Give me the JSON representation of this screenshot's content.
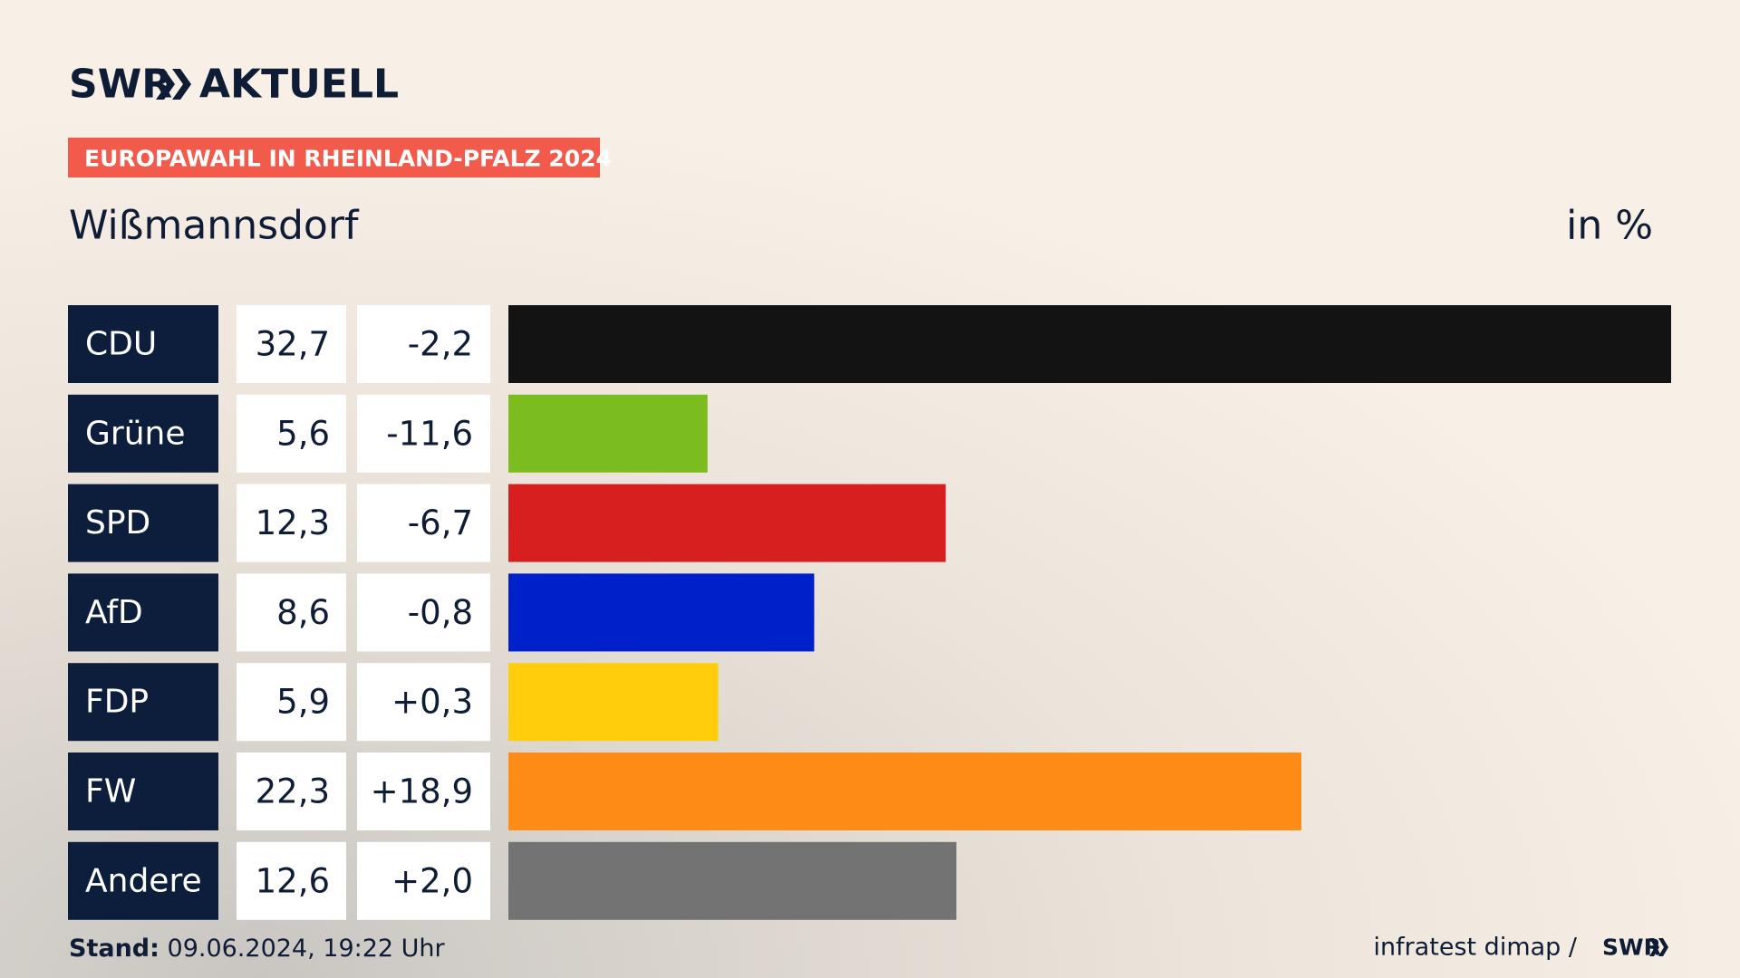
{
  "header": {
    "brand": "SWR",
    "brand_suffix": "AKTUELL",
    "kicker": "EUROPAWAHL IN RHEINLAND-PFALZ 2024"
  },
  "chart_data": {
    "type": "bar",
    "orientation": "horizontal",
    "title": "Wißmannsdorf",
    "unit_label": "in %",
    "categories": [
      "CDU",
      "Grüne",
      "SPD",
      "AfD",
      "FDP",
      "FW",
      "Andere"
    ],
    "values": [
      32.7,
      5.6,
      12.3,
      8.6,
      5.9,
      22.3,
      12.6
    ],
    "value_labels": [
      "32,7",
      "5,6",
      "12,3",
      "8,6",
      "5,9",
      "22,3",
      "12,6"
    ],
    "changes": [
      -2.2,
      -11.6,
      -6.7,
      -0.8,
      0.3,
      18.9,
      2.0
    ],
    "change_labels": [
      "-2,2",
      "-11,6",
      "-6,7",
      "-0,8",
      "+0,3",
      "+18,9",
      "+2,0"
    ],
    "colors": [
      "#131313",
      "#7bbd1e",
      "#d81f20",
      "#0021c9",
      "#ffcd0b",
      "#ff8c17",
      "#737373"
    ]
  },
  "footer": {
    "stand_label": "Stand:",
    "stand": "09.06.2024, 19:22 Uhr",
    "source": "infratest dimap /",
    "source_brand": "SWR"
  }
}
